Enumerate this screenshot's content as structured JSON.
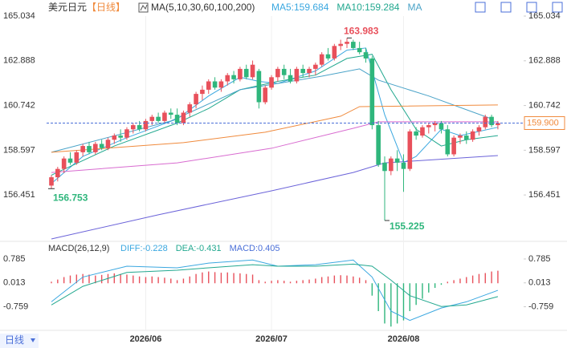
{
  "header": {
    "title": "美元日元",
    "period": "【日线】"
  },
  "footer": {
    "period_tab": "日线"
  },
  "chart_data": [
    {
      "type": "candlestick",
      "indicator": "MA(5,10,30,60,100,200)",
      "categories": [
        null,
        null,
        null,
        null,
        null,
        null,
        null,
        null,
        null,
        null,
        null,
        null,
        null,
        null,
        null,
        "2026/06",
        null,
        null,
        null,
        null,
        null,
        null,
        null,
        null,
        null,
        null,
        null,
        null,
        null,
        null,
        null,
        null,
        null,
        null,
        null,
        "2026/07",
        null,
        null,
        null,
        null,
        null,
        null,
        null,
        null,
        null,
        null,
        null,
        null,
        null,
        null,
        null,
        null,
        null,
        null,
        null,
        null,
        "2026/08",
        null,
        null,
        null,
        null,
        null,
        null,
        null,
        null,
        null,
        null,
        null,
        null,
        null,
        null,
        null
      ],
      "candles": [
        [
          156.9,
          157.4,
          156.753,
          157.3
        ],
        [
          157.3,
          157.8,
          157.1,
          157.7
        ],
        [
          157.7,
          158.3,
          157.5,
          158.2
        ],
        [
          158.2,
          158.5,
          157.9,
          158.0
        ],
        [
          158.0,
          158.6,
          157.9,
          158.5
        ],
        [
          158.5,
          158.9,
          158.3,
          158.8
        ],
        [
          158.8,
          159.0,
          158.4,
          158.5
        ],
        [
          158.5,
          159.0,
          158.4,
          158.9
        ],
        [
          158.9,
          159.1,
          158.6,
          158.7
        ],
        [
          158.7,
          159.2,
          158.6,
          159.1
        ],
        [
          159.1,
          159.4,
          158.9,
          159.3
        ],
        [
          159.3,
          159.6,
          159.0,
          159.2
        ],
        [
          159.2,
          159.7,
          159.1,
          159.6
        ],
        [
          159.6,
          159.9,
          159.4,
          159.8
        ],
        [
          159.8,
          160.0,
          159.5,
          159.6
        ],
        [
          159.6,
          160.1,
          159.5,
          160.0
        ],
        [
          160.0,
          160.3,
          159.8,
          160.2
        ],
        [
          160.2,
          160.4,
          159.9,
          160.0
        ],
        [
          160.0,
          160.5,
          159.9,
          160.4
        ],
        [
          160.4,
          160.6,
          160.1,
          160.3
        ],
        [
          160.3,
          160.6,
          159.8,
          159.9
        ],
        [
          159.9,
          160.5,
          159.8,
          160.4
        ],
        [
          160.4,
          160.9,
          160.2,
          160.8
        ],
        [
          160.8,
          161.4,
          160.6,
          161.3
        ],
        [
          161.3,
          161.7,
          161.0,
          161.5
        ],
        [
          161.5,
          162.0,
          161.3,
          161.9
        ],
        [
          161.9,
          162.1,
          161.5,
          161.6
        ],
        [
          161.6,
          162.0,
          161.4,
          161.9
        ],
        [
          161.9,
          162.3,
          161.7,
          162.2
        ],
        [
          162.2,
          162.4,
          161.8,
          162.0
        ],
        [
          162.0,
          162.6,
          161.9,
          162.5
        ],
        [
          162.5,
          162.7,
          162.0,
          162.1
        ],
        [
          162.1,
          162.9,
          162.0,
          162.7
        ],
        [
          162.4,
          162.5,
          160.6,
          160.9
        ],
        [
          160.9,
          161.7,
          160.8,
          161.6
        ],
        [
          161.6,
          162.2,
          161.5,
          162.1
        ],
        [
          162.1,
          162.6,
          161.9,
          162.5
        ],
        [
          162.5,
          162.7,
          162.0,
          162.2
        ],
        [
          162.2,
          162.5,
          161.8,
          161.9
        ],
        [
          161.9,
          162.6,
          161.8,
          162.5
        ],
        [
          162.5,
          162.7,
          162.1,
          162.3
        ],
        [
          162.3,
          162.6,
          162.1,
          162.5
        ],
        [
          162.5,
          162.8,
          162.2,
          162.7
        ],
        [
          162.7,
          163.3,
          162.6,
          163.2
        ],
        [
          163.2,
          163.5,
          162.9,
          163.0
        ],
        [
          163.0,
          163.7,
          162.9,
          163.6
        ],
        [
          163.6,
          163.9,
          163.4,
          163.7
        ],
        [
          163.7,
          163.983,
          163.5,
          163.8
        ],
        [
          163.8,
          163.9,
          163.4,
          163.5
        ],
        [
          163.5,
          163.8,
          163.2,
          163.3
        ],
        [
          163.3,
          163.5,
          162.8,
          163.0
        ],
        [
          163.0,
          163.1,
          159.6,
          159.8
        ],
        [
          159.8,
          160.0,
          157.8,
          157.9
        ],
        [
          158.0,
          158.3,
          155.225,
          157.6
        ],
        [
          157.6,
          158.3,
          157.4,
          158.2
        ],
        [
          158.2,
          158.6,
          157.6,
          158.0
        ],
        [
          158.0,
          158.4,
          156.6,
          157.7
        ],
        [
          157.7,
          159.6,
          157.6,
          159.5
        ],
        [
          159.5,
          159.7,
          159.1,
          159.3
        ],
        [
          159.3,
          159.8,
          159.2,
          159.7
        ],
        [
          159.7,
          159.9,
          159.4,
          159.8
        ],
        [
          159.8,
          160.0,
          159.5,
          159.9
        ],
        [
          159.9,
          160.0,
          159.4,
          159.6
        ],
        [
          159.6,
          159.8,
          158.3,
          158.4
        ],
        [
          158.4,
          159.3,
          158.3,
          159.2
        ],
        [
          159.2,
          159.4,
          158.9,
          159.3
        ],
        [
          159.3,
          159.5,
          158.9,
          159.1
        ],
        [
          159.1,
          159.6,
          159.0,
          159.5
        ],
        [
          159.5,
          159.8,
          159.3,
          159.7
        ],
        [
          159.7,
          160.3,
          159.6,
          160.2
        ],
        [
          160.2,
          160.3,
          159.7,
          159.8
        ],
        [
          159.8,
          160.0,
          159.6,
          159.9
        ]
      ],
      "up_color": "#e8505b",
      "down_color": "#2fb67c",
      "ylim": [
        154.34,
        165.42
      ],
      "yticks": [
        165.034,
        162.888,
        160.742,
        158.597,
        156.451
      ],
      "ma_lines": [
        {
          "name": "MA5",
          "legend": "MA5:159.684",
          "color": "#3aa7e0",
          "x": [
            0,
            5,
            12,
            20,
            25,
            30,
            33,
            36,
            42,
            47,
            50,
            53,
            56,
            58,
            62,
            65,
            71
          ],
          "values": [
            157.0,
            158.3,
            159.2,
            160.1,
            161.2,
            162.1,
            161.9,
            161.8,
            162.4,
            163.4,
            163.5,
            160.3,
            158.0,
            158.3,
            159.6,
            159.3,
            159.7
          ]
        },
        {
          "name": "MA10",
          "legend": "MA10:159.284",
          "color": "#22a88f",
          "x": [
            0,
            10,
            20,
            25,
            30,
            36,
            42,
            47,
            51,
            54,
            58,
            62,
            66,
            71
          ],
          "values": [
            157.4,
            158.8,
            159.9,
            160.6,
            161.5,
            161.9,
            162.2,
            163.0,
            163.2,
            161.5,
            159.6,
            158.8,
            159.1,
            159.3
          ]
        },
        {
          "name": "MA",
          "color": "#4aa3c8",
          "x": [
            0,
            19,
            30,
            43,
            49,
            52,
            60,
            70
          ],
          "values": [
            158.5,
            160.0,
            161.5,
            162.15,
            162.5,
            161.96,
            161.2,
            160.1
          ]
        },
        {
          "color": "#f08a3c",
          "x": [
            0,
            21,
            34,
            46,
            49,
            71
          ],
          "values": [
            158.5,
            158.96,
            159.46,
            160.23,
            160.69,
            160.77
          ]
        },
        {
          "color": "#d86bd0",
          "x": [
            0,
            20,
            35,
            48,
            52,
            71
          ],
          "values": [
            157.53,
            157.99,
            158.69,
            159.65,
            159.96,
            159.96
          ]
        },
        {
          "color": "#6b63d9",
          "x": [
            0,
            17,
            35,
            48,
            53,
            71
          ],
          "values": [
            154.34,
            155.5,
            156.65,
            157.53,
            157.99,
            158.34
          ]
        }
      ],
      "current_price": {
        "value": 159.9,
        "label": "159.900"
      }
    },
    {
      "type": "macd",
      "title": "MACD(26,12,9)",
      "legend": [
        {
          "text": "DIFF:-0.228",
          "color": "#3aa7e0"
        },
        {
          "text": "DEA:-0.431",
          "color": "#22a88f"
        },
        {
          "text": "MACD:0.405",
          "color": "#4a6fd8"
        }
      ],
      "ylim": [
        -1.47,
        1.25
      ],
      "yticks": [
        0.785,
        0.013,
        -0.759
      ],
      "histogram": [
        0.05,
        0.12,
        0.2,
        0.25,
        0.28,
        0.3,
        0.28,
        0.25,
        0.27,
        0.3,
        0.32,
        0.3,
        0.28,
        0.25,
        0.22,
        0.2,
        0.22,
        0.2,
        0.18,
        0.15,
        0.1,
        0.15,
        0.22,
        0.3,
        0.35,
        0.38,
        0.36,
        0.34,
        0.35,
        0.33,
        0.32,
        0.3,
        0.28,
        0.1,
        0.05,
        0.08,
        0.1,
        0.08,
        0.05,
        0.08,
        0.1,
        0.12,
        0.15,
        0.2,
        0.22,
        0.25,
        0.26,
        0.25,
        0.22,
        0.18,
        0.1,
        -0.4,
        -0.9,
        -1.3,
        -1.4,
        -1.3,
        -1.2,
        -0.9,
        -0.7,
        -0.5,
        -0.3,
        -0.15,
        -0.05,
        0.05,
        0.1,
        0.15,
        0.2,
        0.25,
        0.3,
        0.33,
        0.38,
        0.405
      ],
      "up_color": "#e8505b",
      "down_color": "#2fb67c",
      "lines": [
        {
          "color": "#3aa7e0",
          "x": [
            0,
            5,
            12,
            20,
            25,
            32,
            36,
            42,
            48,
            51,
            54,
            57,
            62,
            66,
            71
          ],
          "values": [
            -0.6,
            0.2,
            0.55,
            0.5,
            0.65,
            0.75,
            0.55,
            0.6,
            0.75,
            0.2,
            -0.9,
            -1.2,
            -0.8,
            -0.6,
            -0.228
          ]
        },
        {
          "color": "#22a88f",
          "x": [
            0,
            5,
            12,
            20,
            25,
            32,
            36,
            42,
            48,
            51,
            54,
            57,
            62,
            66,
            71
          ],
          "values": [
            -0.7,
            -0.1,
            0.35,
            0.42,
            0.5,
            0.6,
            0.55,
            0.55,
            0.62,
            0.55,
            0.1,
            -0.4,
            -0.75,
            -0.7,
            -0.431
          ]
        }
      ]
    }
  ]
}
